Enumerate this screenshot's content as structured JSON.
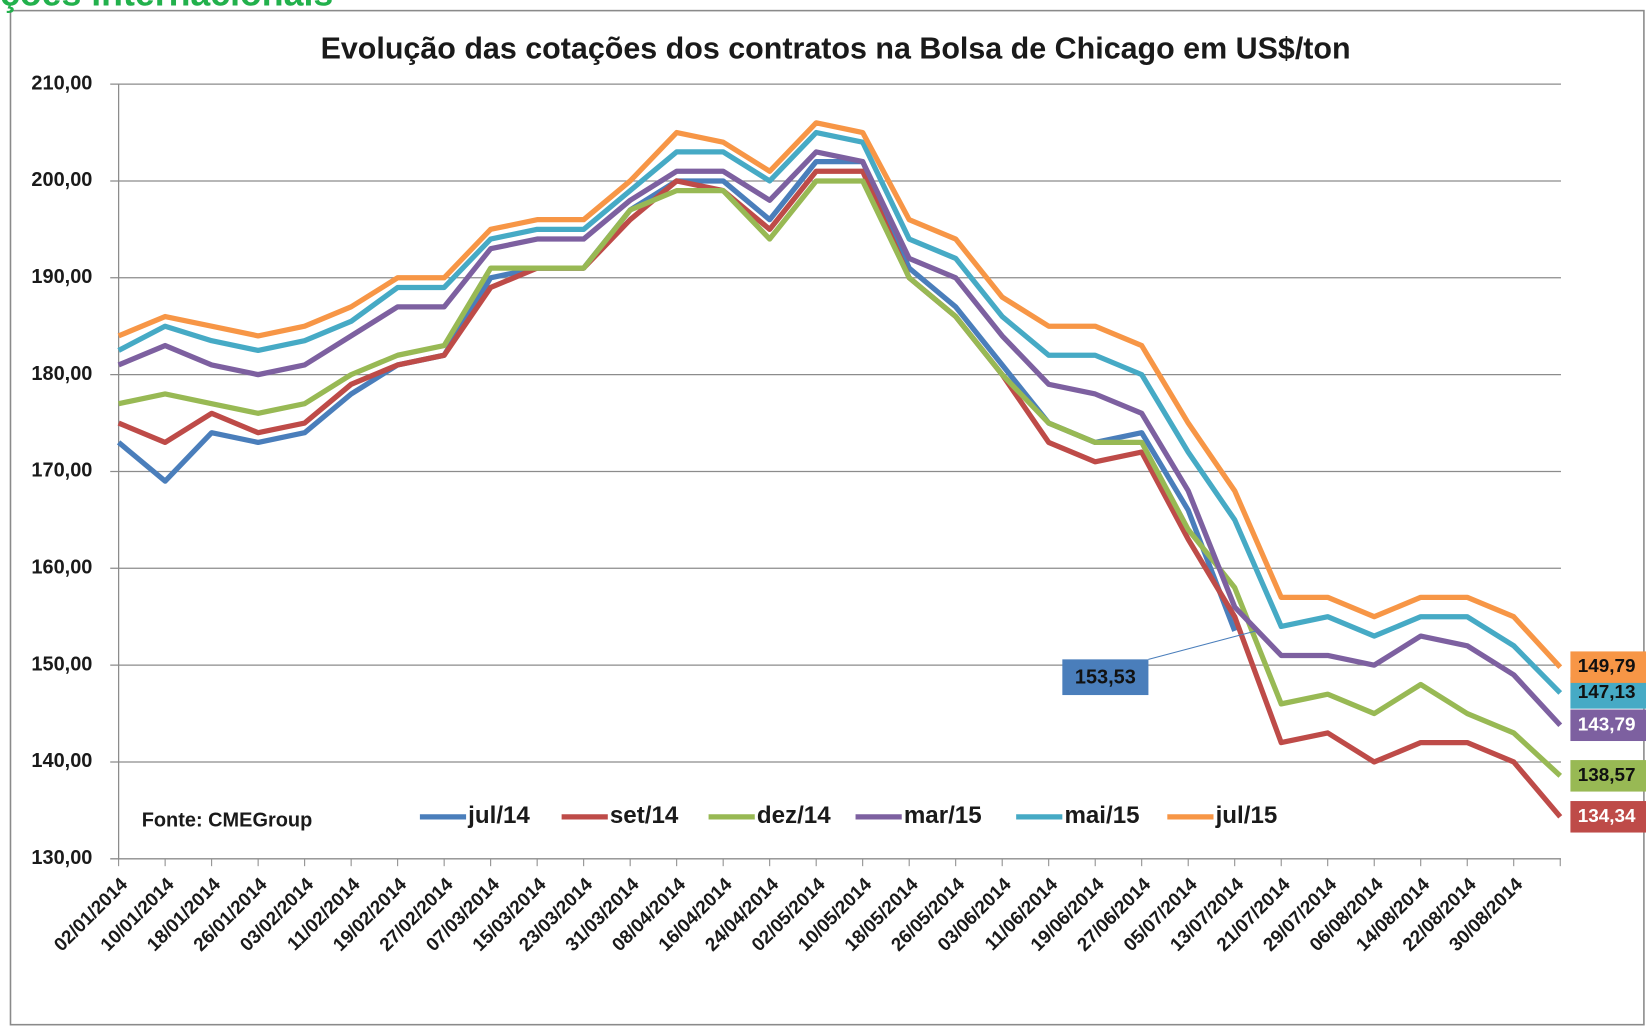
{
  "header": {
    "title": "ções internacionais"
  },
  "chart_data": {
    "type": "line",
    "title": "Evolução das cotações dos contratos na Bolsa de Chicago em US$/ton",
    "source": "Fonte: CMEGroup",
    "categories": [
      "02/01/2014",
      "10/01/2014",
      "18/01/2014",
      "26/01/2014",
      "03/02/2014",
      "11/02/2014",
      "19/02/2014",
      "27/02/2014",
      "07/03/2014",
      "15/03/2014",
      "23/03/2014",
      "31/03/2014",
      "08/04/2014",
      "16/04/2014",
      "24/04/2014",
      "02/05/2014",
      "10/05/2014",
      "18/05/2014",
      "26/05/2014",
      "03/06/2014",
      "11/06/2014",
      "19/06/2014",
      "27/06/2014",
      "05/07/2014",
      "13/07/2014",
      "21/07/2014",
      "29/07/2014",
      "06/08/2014",
      "14/08/2014",
      "22/08/2014",
      "30/08/2014",
      null
    ],
    "ylim": [
      130,
      210
    ],
    "yticks": [
      {
        "value": 130,
        "label": "130,00"
      },
      {
        "value": 140,
        "label": "140,00"
      },
      {
        "value": 150,
        "label": "150,00"
      },
      {
        "value": 160,
        "label": "160,00"
      },
      {
        "value": 170,
        "label": "170,00"
      },
      {
        "value": 180,
        "label": "180,00"
      },
      {
        "value": 190,
        "label": "190,00"
      },
      {
        "value": 200,
        "label": "200,00"
      },
      {
        "value": 210,
        "label": "210,00"
      }
    ],
    "grid": true,
    "legend": "bottom",
    "series": [
      {
        "name": "jul/14",
        "color": "#4a7ebb",
        "values": [
          173,
          169,
          174,
          173,
          174,
          178,
          181,
          182,
          190,
          191,
          191,
          197,
          200,
          200,
          196,
          202,
          202,
          191,
          187,
          181,
          175,
          173,
          174,
          166,
          153.53,
          null,
          null,
          null,
          null,
          null,
          null,
          null
        ],
        "value_labels": [
          null,
          null,
          null,
          null,
          null,
          null,
          null,
          null,
          null,
          null,
          null,
          null,
          null,
          null,
          null,
          null,
          null,
          null,
          null,
          null,
          null,
          null,
          null,
          null,
          "153,53",
          null,
          null,
          null,
          null,
          null,
          null,
          null
        ]
      },
      {
        "name": "set/14",
        "color": "#be4b48",
        "values": [
          175,
          173,
          176,
          174,
          175,
          179,
          181,
          182,
          189,
          191,
          191,
          196,
          200,
          199,
          195,
          201,
          201,
          190,
          186,
          180,
          173,
          171,
          172,
          163,
          155,
          142,
          143,
          140,
          142,
          142,
          140,
          134.34
        ],
        "value_labels": [
          null,
          null,
          null,
          null,
          null,
          null,
          null,
          null,
          null,
          null,
          null,
          null,
          null,
          null,
          null,
          null,
          null,
          null,
          null,
          null,
          null,
          null,
          null,
          null,
          null,
          null,
          null,
          null,
          null,
          null,
          null,
          "134,34"
        ]
      },
      {
        "name": "dez/14",
        "color": "#98b954",
        "values": [
          177,
          178,
          177,
          176,
          177,
          180,
          182,
          183,
          191,
          191,
          191,
          197,
          199,
          199,
          194,
          200,
          200,
          190,
          186,
          180,
          175,
          173,
          173,
          164,
          158,
          146,
          147,
          145,
          148,
          145,
          143,
          138.57
        ],
        "value_labels": [
          null,
          null,
          null,
          null,
          null,
          null,
          null,
          null,
          null,
          null,
          null,
          null,
          null,
          null,
          null,
          null,
          null,
          null,
          null,
          null,
          null,
          null,
          null,
          null,
          null,
          null,
          null,
          null,
          null,
          null,
          null,
          "138,57"
        ]
      },
      {
        "name": "mar/15",
        "color": "#7d60a0",
        "values": [
          181,
          183,
          181,
          180,
          181,
          184,
          187,
          187,
          193,
          194,
          194,
          198,
          201,
          201,
          198,
          203,
          202,
          192,
          190,
          184,
          179,
          178,
          176,
          168,
          156,
          151,
          151,
          150,
          153,
          152,
          149,
          143.79
        ],
        "value_labels": [
          null,
          null,
          null,
          null,
          null,
          null,
          null,
          null,
          null,
          null,
          null,
          null,
          null,
          null,
          null,
          null,
          null,
          null,
          null,
          null,
          null,
          null,
          null,
          null,
          null,
          null,
          null,
          null,
          null,
          null,
          null,
          "143,79"
        ]
      },
      {
        "name": "mai/15",
        "color": "#46aac5",
        "values": [
          182.5,
          185,
          183.5,
          182.5,
          183.5,
          185.5,
          189,
          189,
          194,
          195,
          195,
          199,
          203,
          203,
          200,
          205,
          204,
          194,
          192,
          186,
          182,
          182,
          180,
          172,
          165,
          154,
          155,
          153,
          155,
          155,
          152,
          147.13
        ],
        "value_labels": [
          null,
          null,
          null,
          null,
          null,
          null,
          null,
          null,
          null,
          null,
          null,
          null,
          null,
          null,
          null,
          null,
          null,
          null,
          null,
          null,
          null,
          null,
          null,
          null,
          null,
          null,
          null,
          null,
          null,
          null,
          null,
          "147,13"
        ]
      },
      {
        "name": "jul/15",
        "color": "#f79646",
        "values": [
          184,
          186,
          185,
          184,
          185,
          187,
          190,
          190,
          195,
          196,
          196,
          200,
          205,
          204,
          201,
          206,
          205,
          196,
          194,
          188,
          185,
          185,
          183,
          175,
          168,
          157,
          157,
          155,
          157,
          157,
          155,
          149.79
        ],
        "value_labels": [
          null,
          null,
          null,
          null,
          null,
          null,
          null,
          null,
          null,
          null,
          null,
          null,
          null,
          null,
          null,
          null,
          null,
          null,
          null,
          null,
          null,
          null,
          null,
          null,
          null,
          null,
          null,
          null,
          null,
          null,
          null,
          "149,79"
        ]
      }
    ]
  }
}
